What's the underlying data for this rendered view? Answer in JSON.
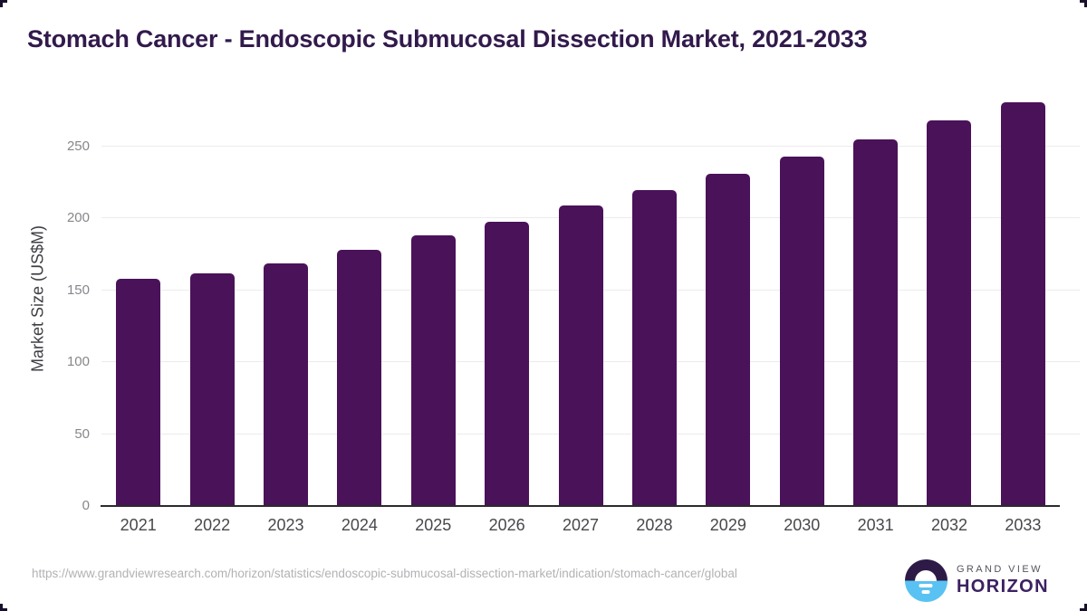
{
  "title": "Stomach Cancer - Endoscopic Submucosal Dissection Market, 2021-2033",
  "chart_data": {
    "type": "bar",
    "title": "Stomach Cancer - Endoscopic Submucosal Dissection Market, 2021-2033",
    "categories": [
      "2021",
      "2022",
      "2023",
      "2024",
      "2025",
      "2026",
      "2027",
      "2028",
      "2029",
      "2030",
      "2031",
      "2032",
      "2033"
    ],
    "values": [
      158,
      162,
      169,
      178,
      188,
      198,
      209,
      220,
      231,
      243,
      255,
      268,
      281
    ],
    "xlabel": "",
    "ylabel": "Market Size (US$M)",
    "ylim": [
      0,
      289
    ],
    "yticks": [
      0,
      50,
      100,
      150,
      200,
      250
    ],
    "grid": "horizontal",
    "legend": false,
    "bar_color": "#4a1259"
  },
  "footer": {
    "source_url": "https://www.grandviewresearch.com/horizon/statistics/endoscopic-submucosal-dissection-market/indication/stomach-cancer/global",
    "brand": {
      "name_top": "GRAND VIEW",
      "name_bottom": "HORIZON"
    }
  },
  "colors": {
    "bar-fill": "#4a1259",
    "title-ink": "#321a4c",
    "brand-purple": "#2e1a47",
    "brand-blue": "#59c2f2",
    "horizon-ink": "#3b2161",
    "ink": "#170f2c"
  }
}
